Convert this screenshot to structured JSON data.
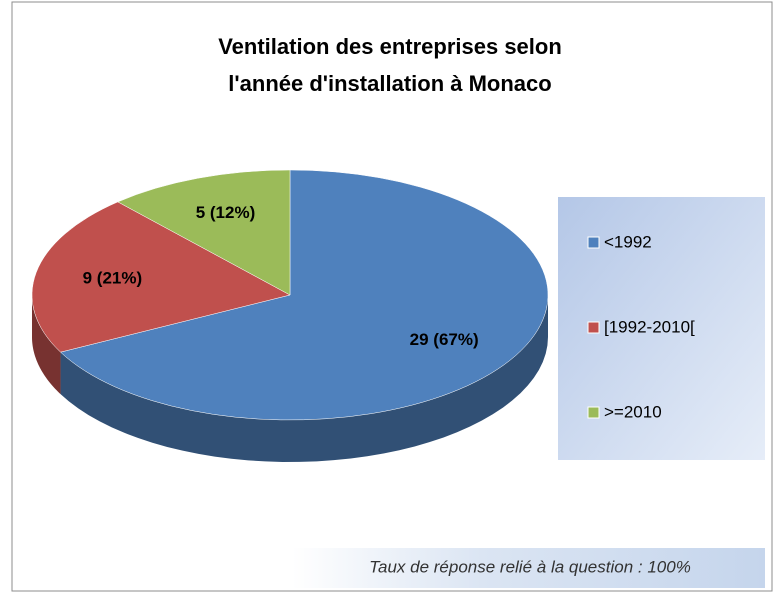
{
  "chart_data": {
    "type": "pie",
    "title": "Ventilation des entreprises selon l'année d'installation à Monaco",
    "categories": [
      "<1992",
      "[1992-2010[",
      ">=2010"
    ],
    "values": [
      29,
      9,
      5
    ],
    "value_labels": [
      "29 (67%)",
      "9 (21%)",
      "5 (12%)"
    ],
    "colors": [
      "#4f81bd",
      "#c0504d",
      "#9bbb59"
    ],
    "legend": "right",
    "annotation": "Taux de réponse relié à la question : 100%"
  }
}
